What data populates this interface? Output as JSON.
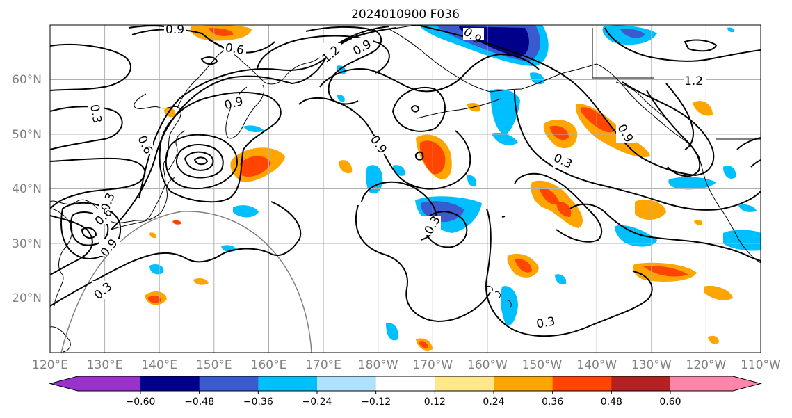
{
  "title": "2024010900 F036",
  "chart_data": {
    "type": "map",
    "x_ticks": [
      "120°E",
      "130°E",
      "140°E",
      "150°E",
      "160°E",
      "170°E",
      "180°W",
      "170°W",
      "160°W",
      "150°W",
      "140°W",
      "130°W",
      "120°W",
      "110°W"
    ],
    "y_ticks": [
      "60°N",
      "50°N",
      "40°N",
      "30°N",
      "20°N"
    ],
    "grid": true,
    "lon_range": [
      120,
      250
    ],
    "lat_range": [
      10,
      70
    ],
    "contour_labels": [
      {
        "text": "0.9",
        "lon": 143,
        "lat": 69
      },
      {
        "text": "0.6",
        "lon": 154,
        "lat": 65
      },
      {
        "text": "1.2",
        "lon": 172,
        "lat": 65
      },
      {
        "text": "0.9",
        "lon": 176,
        "lat": 66
      },
      {
        "text": "0.9",
        "lon": 200,
        "lat": 68
      },
      {
        "text": "1.2",
        "lon": 236,
        "lat": 60
      },
      {
        "text": "0.3",
        "lon": 129,
        "lat": 52
      },
      {
        "text": "0.9",
        "lon": 154,
        "lat": 54
      },
      {
        "text": "0.6",
        "lon": 137,
        "lat": 48
      },
      {
        "text": "0.9",
        "lon": 180,
        "lat": 48
      },
      {
        "text": "0.9",
        "lon": 224,
        "lat": 49
      },
      {
        "text": "0.3",
        "lon": 212,
        "lat": 43
      },
      {
        "text": "0.3",
        "lon": 129,
        "lat": 37
      },
      {
        "text": "0.6",
        "lon": 130,
        "lat": 34
      },
      {
        "text": "0.9",
        "lon": 131,
        "lat": 30
      },
      {
        "text": "0.3",
        "lon": 189,
        "lat": 33
      },
      {
        "text": "0.3",
        "lon": 129,
        "lat": 21
      },
      {
        "text": "0.3",
        "lon": 206,
        "lat": 15
      }
    ],
    "colorbar": {
      "ticks": [
        "−0.60",
        "−0.48",
        "−0.36",
        "−0.24",
        "−0.12",
        "0.12",
        "0.24",
        "0.36",
        "0.48",
        "0.60"
      ],
      "colors": [
        "#9932CC",
        "#00008B",
        "#3A5BCF",
        "#00BFFF",
        "#B0E2FF",
        "#FFFFFF",
        "#FFE88A",
        "#FFA500",
        "#FF4500",
        "#B22222",
        "#FF85AA"
      ],
      "extend": "both"
    }
  }
}
